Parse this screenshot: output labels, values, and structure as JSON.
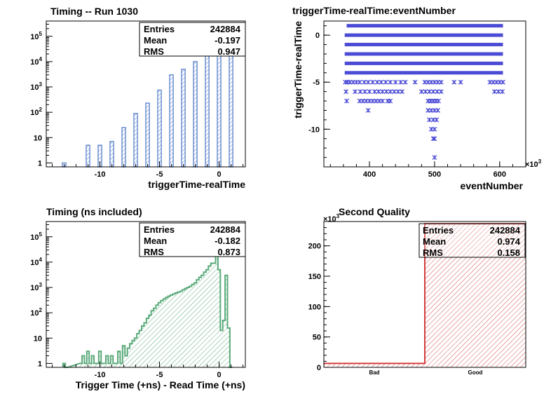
{
  "chart_data": [
    {
      "id": "p1",
      "type": "bar",
      "title": "Timing -- Run 1030",
      "xlabel": "triggerTime-realTime",
      "ylabel": "",
      "xlim": [
        -14.5,
        2.2
      ],
      "ylim": [
        0.7,
        400000
      ],
      "log_y": true,
      "grid": false,
      "x_ticks": [
        -10,
        -5,
        0
      ],
      "y_ticks": [
        {
          "value": 1,
          "base": "1",
          "exp": ""
        },
        {
          "value": 10,
          "base": "10",
          "exp": ""
        },
        {
          "value": 100,
          "base": "10",
          "exp": "2"
        },
        {
          "value": 1000,
          "base": "10",
          "exp": "3"
        },
        {
          "value": 10000,
          "base": "10",
          "exp": "4"
        },
        {
          "value": 100000,
          "base": "10",
          "exp": "5"
        }
      ],
      "color": "#6b8fd1",
      "bars": [
        {
          "x": -13,
          "y": 1
        },
        {
          "x": -11,
          "y": 5
        },
        {
          "x": -10,
          "y": 5
        },
        {
          "x": -9,
          "y": 7
        },
        {
          "x": -8,
          "y": 25
        },
        {
          "x": -7,
          "y": 90
        },
        {
          "x": -6,
          "y": 230
        },
        {
          "x": -5,
          "y": 750
        },
        {
          "x": -4,
          "y": 3000
        },
        {
          "x": -3,
          "y": 5000
        },
        {
          "x": -2,
          "y": 10000
        },
        {
          "x": -1,
          "y": 30000
        },
        {
          "x": 0,
          "y": 170000
        },
        {
          "x": 1,
          "y": 60000
        }
      ],
      "stats": [
        {
          "label": "Entries",
          "value": "242884"
        },
        {
          "label": "Mean",
          "value": "-0.197"
        },
        {
          "label": "RMS",
          "value": "0.947"
        }
      ]
    },
    {
      "id": "p2",
      "type": "scatter",
      "title": "triggerTime-realTime:eventNumber",
      "xlabel": "eventNumber",
      "ylabel": "triggerTime-realTime",
      "x_multiplier": "×10",
      "x_multiplier_exp": "3",
      "xlim": [
        330,
        640
      ],
      "ylim": [
        -14,
        1.5
      ],
      "grid": false,
      "x_ticks": [
        400,
        500,
        600
      ],
      "y_ticks": [
        0,
        -5,
        -10
      ],
      "color": "#4b4bd6",
      "bands": [
        {
          "y": 1,
          "x_start": 365,
          "x_end": 605
        },
        {
          "y": 0,
          "x_start": 362,
          "x_end": 605
        },
        {
          "y": -1,
          "x_start": 362,
          "x_end": 605
        },
        {
          "y": -2,
          "x_start": 362,
          "x_end": 605
        },
        {
          "y": -3,
          "x_start": 362,
          "x_end": 605
        },
        {
          "y": -4,
          "x_start": 362,
          "x_end": 605
        }
      ],
      "points": [
        {
          "x": 363,
          "y": -5
        },
        {
          "x": 366,
          "y": -5
        },
        {
          "x": 370,
          "y": -5
        },
        {
          "x": 375,
          "y": -5
        },
        {
          "x": 380,
          "y": -5
        },
        {
          "x": 385,
          "y": -5
        },
        {
          "x": 392,
          "y": -5
        },
        {
          "x": 398,
          "y": -5
        },
        {
          "x": 405,
          "y": -5
        },
        {
          "x": 412,
          "y": -5
        },
        {
          "x": 418,
          "y": -5
        },
        {
          "x": 425,
          "y": -5
        },
        {
          "x": 432,
          "y": -5
        },
        {
          "x": 440,
          "y": -5
        },
        {
          "x": 448,
          "y": -5
        },
        {
          "x": 455,
          "y": -5
        },
        {
          "x": 470,
          "y": -5
        },
        {
          "x": 485,
          "y": -5
        },
        {
          "x": 490,
          "y": -5
        },
        {
          "x": 495,
          "y": -5
        },
        {
          "x": 500,
          "y": -5
        },
        {
          "x": 505,
          "y": -5
        },
        {
          "x": 510,
          "y": -5
        },
        {
          "x": 530,
          "y": -5
        },
        {
          "x": 540,
          "y": -5
        },
        {
          "x": 585,
          "y": -5
        },
        {
          "x": 590,
          "y": -5
        },
        {
          "x": 595,
          "y": -5
        },
        {
          "x": 600,
          "y": -5
        },
        {
          "x": 605,
          "y": -5
        },
        {
          "x": 364,
          "y": -6
        },
        {
          "x": 378,
          "y": -6
        },
        {
          "x": 386,
          "y": -6
        },
        {
          "x": 393,
          "y": -6
        },
        {
          "x": 400,
          "y": -6
        },
        {
          "x": 408,
          "y": -6
        },
        {
          "x": 414,
          "y": -6
        },
        {
          "x": 420,
          "y": -6
        },
        {
          "x": 426,
          "y": -6
        },
        {
          "x": 432,
          "y": -6
        },
        {
          "x": 438,
          "y": -6
        },
        {
          "x": 444,
          "y": -6
        },
        {
          "x": 450,
          "y": -6
        },
        {
          "x": 480,
          "y": -6
        },
        {
          "x": 486,
          "y": -6
        },
        {
          "x": 492,
          "y": -6
        },
        {
          "x": 498,
          "y": -6
        },
        {
          "x": 504,
          "y": -6
        },
        {
          "x": 510,
          "y": -6
        },
        {
          "x": 592,
          "y": -6
        },
        {
          "x": 598,
          "y": -6
        },
        {
          "x": 604,
          "y": -6
        },
        {
          "x": 365,
          "y": -7
        },
        {
          "x": 385,
          "y": -7
        },
        {
          "x": 390,
          "y": -7
        },
        {
          "x": 395,
          "y": -7
        },
        {
          "x": 400,
          "y": -7
        },
        {
          "x": 405,
          "y": -7
        },
        {
          "x": 410,
          "y": -7
        },
        {
          "x": 415,
          "y": -7
        },
        {
          "x": 420,
          "y": -7
        },
        {
          "x": 428,
          "y": -7
        },
        {
          "x": 432,
          "y": -7
        },
        {
          "x": 490,
          "y": -7
        },
        {
          "x": 494,
          "y": -7
        },
        {
          "x": 498,
          "y": -7
        },
        {
          "x": 502,
          "y": -7
        },
        {
          "x": 506,
          "y": -7
        },
        {
          "x": 398,
          "y": -8
        },
        {
          "x": 490,
          "y": -8
        },
        {
          "x": 495,
          "y": -8
        },
        {
          "x": 500,
          "y": -8
        },
        {
          "x": 505,
          "y": -8
        },
        {
          "x": 492,
          "y": -9
        },
        {
          "x": 498,
          "y": -9
        },
        {
          "x": 503,
          "y": -9
        },
        {
          "x": 495,
          "y": -10
        },
        {
          "x": 500,
          "y": -10
        },
        {
          "x": 498,
          "y": -11
        },
        {
          "x": 500,
          "y": -11
        },
        {
          "x": 500,
          "y": -13
        }
      ]
    },
    {
      "id": "p3",
      "type": "area",
      "title": "Timing (ns included)",
      "xlabel": "Trigger Time (+ns) - Read Time (+ns)",
      "ylabel": "",
      "xlim": [
        -14.5,
        2.2
      ],
      "ylim": [
        0.7,
        400000
      ],
      "log_y": true,
      "grid": false,
      "x_ticks": [
        -10,
        -5,
        0
      ],
      "y_ticks": [
        {
          "value": 1,
          "base": "1",
          "exp": ""
        },
        {
          "value": 10,
          "base": "10",
          "exp": ""
        },
        {
          "value": 100,
          "base": "10",
          "exp": "2"
        },
        {
          "value": 1000,
          "base": "10",
          "exp": "3"
        },
        {
          "value": 10000,
          "base": "10",
          "exp": "4"
        },
        {
          "value": 100000,
          "base": "10",
          "exp": "5"
        }
      ],
      "color": "#5aaa7a",
      "x": [
        -13.0,
        -12.8,
        -11.6,
        -11.4,
        -11.2,
        -11.0,
        -10.8,
        -10.6,
        -10.4,
        -10.2,
        -10.0,
        -9.8,
        -9.6,
        -9.4,
        -9.2,
        -9.0,
        -8.8,
        -8.6,
        -8.4,
        -8.2,
        -8.0,
        -7.8,
        -7.6,
        -7.4,
        -7.2,
        -7.0,
        -6.8,
        -6.6,
        -6.4,
        -6.2,
        -6.0,
        -5.8,
        -5.6,
        -5.4,
        -5.2,
        -5.0,
        -4.8,
        -4.6,
        -4.4,
        -4.2,
        -4.0,
        -3.8,
        -3.6,
        -3.4,
        -3.2,
        -3.0,
        -2.8,
        -2.6,
        -2.4,
        -2.2,
        -2.0,
        -1.8,
        -1.6,
        -1.4,
        -1.2,
        -1.0,
        -0.8,
        -0.6,
        -0.4,
        -0.2,
        0.0,
        0.2,
        0.4,
        0.6,
        0.8,
        1.0
      ],
      "values": [
        1,
        0,
        1,
        2,
        1,
        3,
        1,
        2,
        1,
        1,
        3,
        1,
        1,
        2,
        1,
        2,
        1,
        1,
        3,
        1,
        5,
        2,
        4,
        6,
        8,
        10,
        15,
        20,
        30,
        40,
        60,
        80,
        120,
        150,
        200,
        250,
        300,
        350,
        400,
        450,
        500,
        550,
        600,
        650,
        700,
        800,
        900,
        1000,
        1100,
        1300,
        1500,
        2000,
        2500,
        3000,
        4000,
        5000,
        7000,
        9000,
        9000,
        30000,
        5000,
        20,
        50,
        3000,
        25,
        0
      ],
      "stats": [
        {
          "label": "Entries",
          "value": "242884"
        },
        {
          "label": "Mean",
          "value": "-0.182"
        },
        {
          "label": "RMS",
          "value": "0.873"
        }
      ]
    },
    {
      "id": "p4",
      "type": "bar",
      "title": "Second Quality",
      "xlabel": "",
      "ylabel": "",
      "y_multiplier": "×10",
      "y_multiplier_exp": "3",
      "ylim": [
        0,
        240
      ],
      "grid": false,
      "categories": [
        "Bad",
        "Good"
      ],
      "values": [
        6.5,
        236.4
      ],
      "y_ticks": [
        0,
        50,
        100,
        150,
        200
      ],
      "color": "#d43c3c",
      "stats": [
        {
          "label": "Entries",
          "value": "242884"
        },
        {
          "label": "Mean",
          "value": "0.974"
        },
        {
          "label": "RMS",
          "value": "0.158"
        }
      ]
    }
  ]
}
